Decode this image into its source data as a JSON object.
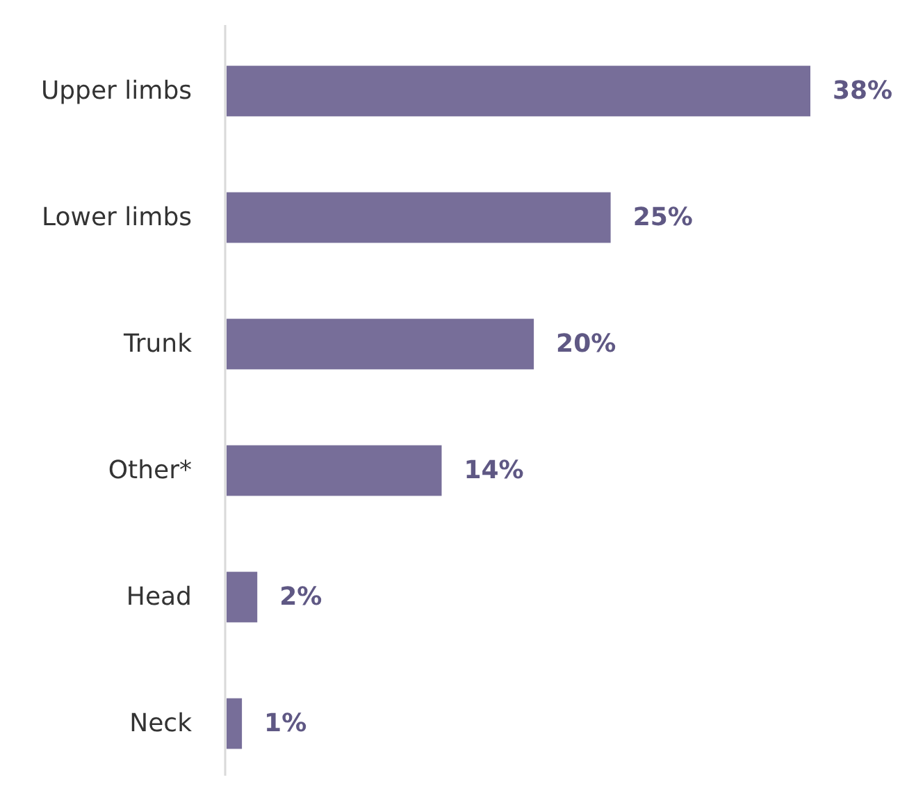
{
  "chart_data": {
    "type": "bar",
    "orientation": "horizontal",
    "categories": [
      "Upper limbs",
      "Lower limbs",
      "Trunk",
      "Other*",
      "Head",
      "Neck"
    ],
    "values": [
      38,
      25,
      20,
      14,
      2,
      1
    ],
    "color": "#776e99",
    "data_labels": true,
    "value_labels": [
      "38%",
      "25%",
      "20%",
      "14%",
      "2%",
      "1%"
    ]
  }
}
